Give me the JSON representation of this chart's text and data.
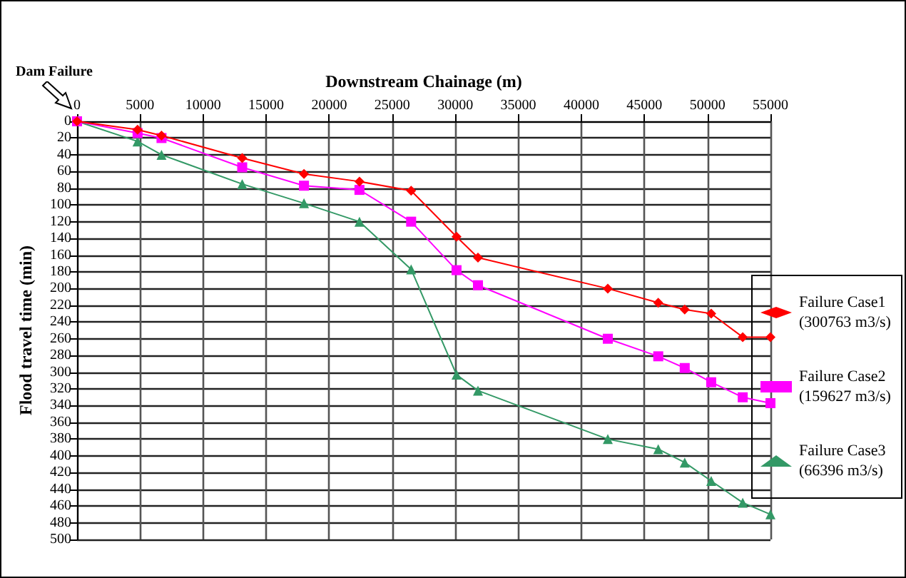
{
  "chart_data": {
    "type": "line",
    "xlabel": "Downstream Chainage (m)",
    "ylabel": "Flood travel time (min)",
    "annotations": [
      "Dam Failure"
    ],
    "xlim": [
      0,
      55000
    ],
    "xticks": [
      0,
      5000,
      10000,
      15000,
      20000,
      25000,
      30000,
      35000,
      40000,
      45000,
      50000,
      55000
    ],
    "ylim": [
      500,
      0
    ],
    "yticks": [
      0,
      20,
      40,
      60,
      80,
      100,
      120,
      140,
      160,
      180,
      200,
      220,
      240,
      260,
      280,
      300,
      320,
      340,
      360,
      380,
      400,
      420,
      440,
      460,
      480,
      500
    ],
    "x": [
      0,
      4800,
      6700,
      13100,
      18000,
      22400,
      26500,
      30100,
      31800,
      42100,
      46100,
      48200,
      50300,
      52800,
      55000
    ],
    "grid": true,
    "legend": "right",
    "line_style": "solid",
    "series": [
      {
        "name": "Failure Case1 (300763 m3/s)",
        "color": "#ff0000",
        "marker": "diamond",
        "values": [
          0,
          10,
          17,
          44,
          63,
          72,
          83,
          138,
          163,
          200,
          217,
          225,
          230,
          258,
          258
        ]
      },
      {
        "name": "Failure Case2 (159627 m3/s)",
        "color": "#ff00ff",
        "marker": "square",
        "values": [
          0,
          14,
          20,
          55,
          77,
          82,
          120,
          178,
          196,
          260,
          281,
          295,
          312,
          330,
          337
        ]
      },
      {
        "name": "Failure Case3 (66396 m3/s)",
        "color": "#339966",
        "marker": "triangle",
        "values": [
          0,
          24,
          40,
          75,
          98,
          120,
          177,
          303,
          322,
          380,
          392,
          408,
          430,
          456,
          470
        ]
      }
    ]
  }
}
